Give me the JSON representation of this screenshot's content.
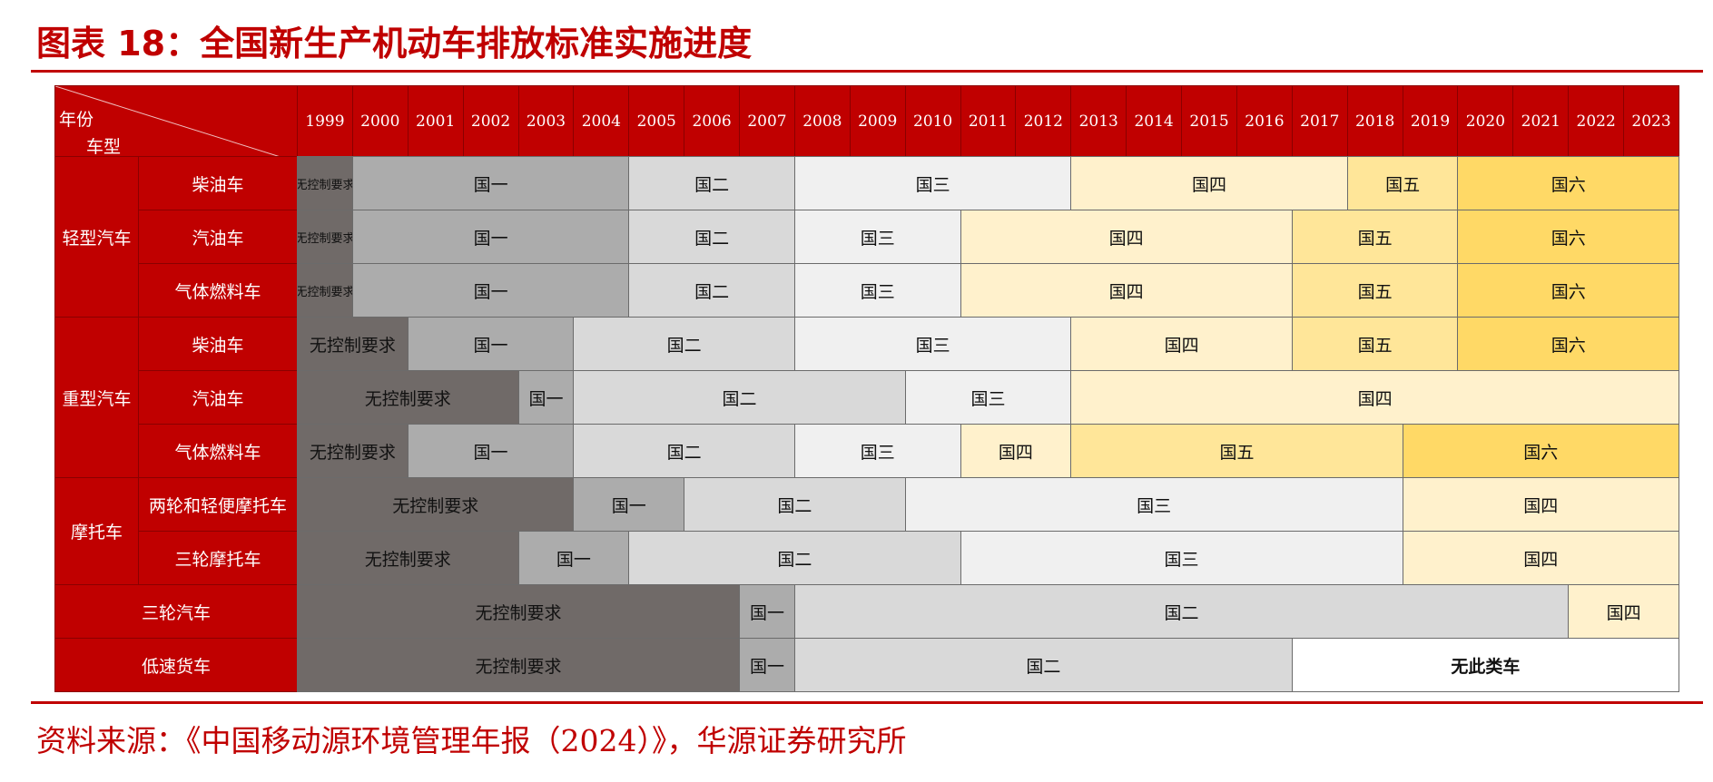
{
  "title": "图表 18：全国新生产机动车排放标准实施进度",
  "source": "资料来源：《中国移动源环境管理年报（2024）》，华源证券研究所",
  "header": {
    "corner_top": "年份",
    "corner_bottom": "车型"
  },
  "years": [
    "1999",
    "2000",
    "2001",
    "2002",
    "2003",
    "2004",
    "2005",
    "2006",
    "2007",
    "2008",
    "2009",
    "2010",
    "2011",
    "2012",
    "2013",
    "2014",
    "2015",
    "2016",
    "2017",
    "2018",
    "2019",
    "2020",
    "2021",
    "2022",
    "2023"
  ],
  "colors": {
    "header": "#c00000",
    "none": "#706a68",
    "g1": "#acacac",
    "g2": "#d9d9d9",
    "g3": "#f0f0f0",
    "g4": "#fff1cc",
    "g5": "#ffe699",
    "g6": "#ffd966",
    "na": "#ffffff"
  },
  "groups": [
    {
      "label": "轻型汽车",
      "rows": [
        0,
        1,
        2
      ]
    },
    {
      "label": "重型汽车",
      "rows": [
        3,
        4,
        5
      ]
    },
    {
      "label": "摩托车",
      "rows": [
        6,
        7
      ]
    }
  ],
  "rows": [
    {
      "label": "柴油车",
      "segments": [
        {
          "label": "无控制要求",
          "start": 1999,
          "end": 1999,
          "tone": "none",
          "small": true
        },
        {
          "label": "国一",
          "start": 2000,
          "end": 2004,
          "tone": "g1"
        },
        {
          "label": "国二",
          "start": 2005,
          "end": 2007,
          "tone": "g2"
        },
        {
          "label": "国三",
          "start": 2008,
          "end": 2012,
          "tone": "g3"
        },
        {
          "label": "国四",
          "start": 2013,
          "end": 2017,
          "tone": "g4"
        },
        {
          "label": "国五",
          "start": 2018,
          "end": 2019,
          "tone": "g5"
        },
        {
          "label": "国六",
          "start": 2020,
          "end": 2023,
          "tone": "g6"
        }
      ]
    },
    {
      "label": "汽油车",
      "segments": [
        {
          "label": "无控制要求",
          "start": 1999,
          "end": 1999,
          "tone": "none",
          "small": true
        },
        {
          "label": "国一",
          "start": 2000,
          "end": 2004,
          "tone": "g1"
        },
        {
          "label": "国二",
          "start": 2005,
          "end": 2007,
          "tone": "g2"
        },
        {
          "label": "国三",
          "start": 2008,
          "end": 2010,
          "tone": "g3"
        },
        {
          "label": "国四",
          "start": 2011,
          "end": 2016,
          "tone": "g4"
        },
        {
          "label": "国五",
          "start": 2017,
          "end": 2019,
          "tone": "g5"
        },
        {
          "label": "国六",
          "start": 2020,
          "end": 2023,
          "tone": "g6"
        }
      ]
    },
    {
      "label": "气体燃料车",
      "segments": [
        {
          "label": "无控制要求",
          "start": 1999,
          "end": 1999,
          "tone": "none",
          "small": true
        },
        {
          "label": "国一",
          "start": 2000,
          "end": 2004,
          "tone": "g1"
        },
        {
          "label": "国二",
          "start": 2005,
          "end": 2007,
          "tone": "g2"
        },
        {
          "label": "国三",
          "start": 2008,
          "end": 2010,
          "tone": "g3"
        },
        {
          "label": "国四",
          "start": 2011,
          "end": 2016,
          "tone": "g4"
        },
        {
          "label": "国五",
          "start": 2017,
          "end": 2019,
          "tone": "g5"
        },
        {
          "label": "国六",
          "start": 2020,
          "end": 2023,
          "tone": "g6"
        }
      ]
    },
    {
      "label": "柴油车",
      "segments": [
        {
          "label": "无控制要求",
          "start": 1999,
          "end": 2000,
          "tone": "none"
        },
        {
          "label": "国一",
          "start": 2001,
          "end": 2003,
          "tone": "g1"
        },
        {
          "label": "国二",
          "start": 2004,
          "end": 2007,
          "tone": "g2"
        },
        {
          "label": "国三",
          "start": 2008,
          "end": 2012,
          "tone": "g3"
        },
        {
          "label": "国四",
          "start": 2013,
          "end": 2016,
          "tone": "g4"
        },
        {
          "label": "国五",
          "start": 2017,
          "end": 2019,
          "tone": "g5"
        },
        {
          "label": "国六",
          "start": 2020,
          "end": 2023,
          "tone": "g6"
        }
      ]
    },
    {
      "label": "汽油车",
      "segments": [
        {
          "label": "无控制要求",
          "start": 1999,
          "end": 2002,
          "tone": "none"
        },
        {
          "label": "国一",
          "start": 2003,
          "end": 2003,
          "tone": "g1"
        },
        {
          "label": "国二",
          "start": 2004,
          "end": 2009,
          "tone": "g2"
        },
        {
          "label": "国三",
          "start": 2010,
          "end": 2012,
          "tone": "g3"
        },
        {
          "label": "国四",
          "start": 2013,
          "end": 2023,
          "tone": "g4"
        }
      ]
    },
    {
      "label": "气体燃料车",
      "segments": [
        {
          "label": "无控制要求",
          "start": 1999,
          "end": 2000,
          "tone": "none"
        },
        {
          "label": "国一",
          "start": 2001,
          "end": 2003,
          "tone": "g1"
        },
        {
          "label": "国二",
          "start": 2004,
          "end": 2007,
          "tone": "g2"
        },
        {
          "label": "国三",
          "start": 2008,
          "end": 2010,
          "tone": "g3"
        },
        {
          "label": "国四",
          "start": 2011,
          "end": 2012,
          "tone": "g4"
        },
        {
          "label": "国五",
          "start": 2013,
          "end": 2018,
          "tone": "g5"
        },
        {
          "label": "国六",
          "start": 2019,
          "end": 2023,
          "tone": "g6"
        }
      ]
    },
    {
      "label": "两轮和轻便摩托车",
      "segments": [
        {
          "label": "无控制要求",
          "start": 1999,
          "end": 2003,
          "tone": "none"
        },
        {
          "label": "国一",
          "start": 2004,
          "end": 2005,
          "tone": "g1"
        },
        {
          "label": "国二",
          "start": 2006,
          "end": 2009,
          "tone": "g2"
        },
        {
          "label": "国三",
          "start": 2010,
          "end": 2018,
          "tone": "g3"
        },
        {
          "label": "国四",
          "start": 2019,
          "end": 2023,
          "tone": "g4"
        }
      ]
    },
    {
      "label": "三轮摩托车",
      "segments": [
        {
          "label": "无控制要求",
          "start": 1999,
          "end": 2002,
          "tone": "none"
        },
        {
          "label": "国一",
          "start": 2003,
          "end": 2004,
          "tone": "g1"
        },
        {
          "label": "国二",
          "start": 2005,
          "end": 2010,
          "tone": "g2"
        },
        {
          "label": "国三",
          "start": 2011,
          "end": 2018,
          "tone": "g3"
        },
        {
          "label": "国四",
          "start": 2019,
          "end": 2023,
          "tone": "g4"
        }
      ]
    },
    {
      "label": "三轮汽车",
      "full": true,
      "segments": [
        {
          "label": "无控制要求",
          "start": 1999,
          "end": 2006,
          "tone": "none"
        },
        {
          "label": "国一",
          "start": 2007,
          "end": 2007,
          "tone": "g1"
        },
        {
          "label": "国二",
          "start": 2008,
          "end": 2021,
          "tone": "g2"
        },
        {
          "label": "国四",
          "start": 2022,
          "end": 2023,
          "tone": "g4"
        }
      ]
    },
    {
      "label": "低速货车",
      "full": true,
      "segments": [
        {
          "label": "无控制要求",
          "start": 1999,
          "end": 2006,
          "tone": "none"
        },
        {
          "label": "国一",
          "start": 2007,
          "end": 2007,
          "tone": "g1"
        },
        {
          "label": "国二",
          "start": 2008,
          "end": 2016,
          "tone": "g2"
        },
        {
          "label": "无此类车",
          "start": 2017,
          "end": 2023,
          "tone": "na",
          "bold": true
        }
      ]
    }
  ]
}
